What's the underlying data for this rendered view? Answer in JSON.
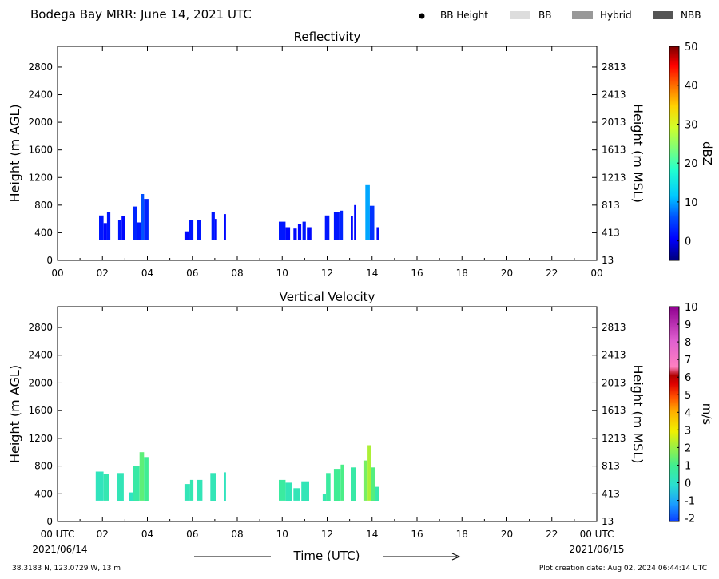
{
  "header": {
    "title": "Bodega Bay MRR:  June 14, 2021 UTC",
    "legend": [
      {
        "label": "BB Height",
        "marker": "dot",
        "color": "#000000"
      },
      {
        "label": "BB",
        "marker": "box",
        "color": "#dddddd"
      },
      {
        "label": "Hybrid",
        "marker": "box",
        "color": "#999999"
      },
      {
        "label": "NBB",
        "marker": "box",
        "color": "#555555"
      }
    ]
  },
  "footer": {
    "location": "38.3183 N, 123.0729 W, 13 m",
    "creation": "Plot creation date: Aug 02, 2024 06:44:14 UTC",
    "xlabel": "Time (UTC)",
    "start_date": "2021/06/14",
    "end_date": "2021/06/15"
  },
  "chart_data": [
    {
      "type": "heatmap",
      "title": "Reflectivity",
      "ylabel": "Height (m AGL)",
      "ylabel_right": "Height (m MSL)",
      "x_ticks": [
        "00",
        "02",
        "04",
        "06",
        "08",
        "10",
        "12",
        "14",
        "16",
        "18",
        "20",
        "22",
        "00"
      ],
      "xlim": [
        0,
        24
      ],
      "ylim": [
        0,
        3100
      ],
      "y_ticks": [
        0,
        400,
        800,
        1200,
        1600,
        2000,
        2400,
        2800
      ],
      "y_ticks_right": [
        13,
        413,
        813,
        1213,
        1613,
        2013,
        2413,
        2813
      ],
      "colorbar": {
        "label": "dBZ",
        "range": [
          -5,
          50
        ],
        "ticks": [
          0,
          10,
          20,
          30,
          40,
          50
        ]
      },
      "columns": [
        {
          "t0": 1.85,
          "t1": 2.05,
          "top": 650,
          "value": 2
        },
        {
          "t0": 2.05,
          "t1": 2.2,
          "top": 540,
          "value": 1
        },
        {
          "t0": 2.2,
          "t1": 2.35,
          "top": 700,
          "value": 2
        },
        {
          "t0": 2.7,
          "t1": 2.85,
          "top": 580,
          "value": 2
        },
        {
          "t0": 2.85,
          "t1": 3.0,
          "top": 640,
          "value": 1
        },
        {
          "t0": 3.35,
          "t1": 3.55,
          "top": 780,
          "value": 3
        },
        {
          "t0": 3.55,
          "t1": 3.7,
          "top": 550,
          "value": 2
        },
        {
          "t0": 3.7,
          "t1": 3.85,
          "top": 960,
          "value": 6
        },
        {
          "t0": 3.85,
          "t1": 4.05,
          "top": 890,
          "value": 3
        },
        {
          "t0": 5.65,
          "t1": 5.85,
          "top": 420,
          "value": 1
        },
        {
          "t0": 5.85,
          "t1": 6.05,
          "top": 580,
          "value": 2
        },
        {
          "t0": 6.2,
          "t1": 6.4,
          "top": 590,
          "value": 2
        },
        {
          "t0": 6.85,
          "t1": 7.0,
          "top": 700,
          "value": 2
        },
        {
          "t0": 7.0,
          "t1": 7.1,
          "top": 600,
          "value": 1
        },
        {
          "t0": 7.4,
          "t1": 7.5,
          "top": 670,
          "value": 1
        },
        {
          "t0": 9.85,
          "t1": 10.15,
          "top": 560,
          "value": 2
        },
        {
          "t0": 10.15,
          "t1": 10.35,
          "top": 480,
          "value": 1
        },
        {
          "t0": 10.5,
          "t1": 10.65,
          "top": 460,
          "value": 1
        },
        {
          "t0": 10.7,
          "t1": 10.85,
          "top": 520,
          "value": 1
        },
        {
          "t0": 10.9,
          "t1": 11.05,
          "top": 560,
          "value": 2
        },
        {
          "t0": 11.1,
          "t1": 11.3,
          "top": 480,
          "value": 1
        },
        {
          "t0": 11.9,
          "t1": 12.1,
          "top": 650,
          "value": 2
        },
        {
          "t0": 12.3,
          "t1": 12.55,
          "top": 700,
          "value": 2
        },
        {
          "t0": 12.55,
          "t1": 12.7,
          "top": 720,
          "value": 3
        },
        {
          "t0": 13.05,
          "t1": 13.15,
          "top": 640,
          "value": 1
        },
        {
          "t0": 13.2,
          "t1": 13.3,
          "top": 800,
          "value": 1
        },
        {
          "t0": 13.7,
          "t1": 13.9,
          "top": 1090,
          "value": 10
        },
        {
          "t0": 13.9,
          "t1": 14.1,
          "top": 790,
          "value": 4
        },
        {
          "t0": 14.2,
          "t1": 14.3,
          "top": 480,
          "value": 1
        }
      ]
    },
    {
      "type": "heatmap",
      "title": "Vertical Velocity",
      "ylabel": "Height (m AGL)",
      "ylabel_right": "Height (m MSL)",
      "x_ticks": [
        "00 UTC",
        "02",
        "04",
        "06",
        "08",
        "10",
        "12",
        "14",
        "16",
        "18",
        "20",
        "22",
        "00 UTC"
      ],
      "xlim": [
        0,
        24
      ],
      "ylim": [
        0,
        3100
      ],
      "y_ticks": [
        0,
        400,
        800,
        1200,
        1600,
        2000,
        2400,
        2800
      ],
      "y_ticks_right": [
        13,
        413,
        813,
        1213,
        1613,
        2013,
        2413,
        2813
      ],
      "colorbar": {
        "label": "m/s",
        "range": [
          -2.2,
          10
        ],
        "ticks": [
          -2,
          -1,
          0,
          1,
          2,
          3,
          4,
          5,
          6,
          7,
          8,
          9,
          10
        ]
      },
      "columns": [
        {
          "t0": 1.7,
          "t1": 2.05,
          "top": 720,
          "value": 0.2
        },
        {
          "t0": 2.05,
          "t1": 2.3,
          "top": 690,
          "value": 0.4
        },
        {
          "t0": 2.65,
          "t1": 2.95,
          "top": 700,
          "value": 0.3
        },
        {
          "t0": 3.2,
          "t1": 3.35,
          "top": 420,
          "value": 0.1
        },
        {
          "t0": 3.35,
          "t1": 3.65,
          "top": 800,
          "value": 0.6
        },
        {
          "t0": 3.65,
          "t1": 3.85,
          "top": 1000,
          "value": 1.3
        },
        {
          "t0": 3.85,
          "t1": 4.05,
          "top": 930,
          "value": 0.9
        },
        {
          "t0": 5.65,
          "t1": 5.9,
          "top": 540,
          "value": 0.3
        },
        {
          "t0": 5.9,
          "t1": 6.05,
          "top": 600,
          "value": 0.4
        },
        {
          "t0": 6.2,
          "t1": 6.45,
          "top": 600,
          "value": 0.3
        },
        {
          "t0": 6.8,
          "t1": 7.05,
          "top": 700,
          "value": 0.3
        },
        {
          "t0": 7.4,
          "t1": 7.5,
          "top": 710,
          "value": 0.2
        },
        {
          "t0": 9.85,
          "t1": 10.15,
          "top": 600,
          "value": 0.7
        },
        {
          "t0": 10.15,
          "t1": 10.45,
          "top": 560,
          "value": 0.3
        },
        {
          "t0": 10.5,
          "t1": 10.8,
          "top": 480,
          "value": 0.3
        },
        {
          "t0": 10.85,
          "t1": 11.2,
          "top": 580,
          "value": 0.3
        },
        {
          "t0": 11.8,
          "t1": 11.95,
          "top": 400,
          "value": 0.4
        },
        {
          "t0": 11.95,
          "t1": 12.15,
          "top": 700,
          "value": 0.7
        },
        {
          "t0": 12.3,
          "t1": 12.6,
          "top": 760,
          "value": 0.9
        },
        {
          "t0": 12.6,
          "t1": 12.75,
          "top": 820,
          "value": 1.1
        },
        {
          "t0": 13.05,
          "t1": 13.3,
          "top": 780,
          "value": 0.6
        },
        {
          "t0": 13.65,
          "t1": 13.8,
          "top": 880,
          "value": 1.6
        },
        {
          "t0": 13.8,
          "t1": 13.95,
          "top": 1100,
          "value": 2.2
        },
        {
          "t0": 13.95,
          "t1": 14.15,
          "top": 780,
          "value": 1.2
        },
        {
          "t0": 14.15,
          "t1": 14.3,
          "top": 500,
          "value": 0.5
        }
      ]
    }
  ]
}
